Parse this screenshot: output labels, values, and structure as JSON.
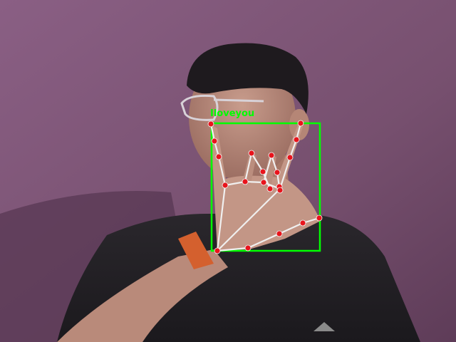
{
  "detection": {
    "label": "Iloveyou",
    "box_color": "#00ff00",
    "label_color": "#00ff00"
  },
  "landmarks": {
    "point_color": "#e8141c",
    "line_color": "#f0f0f0"
  }
}
